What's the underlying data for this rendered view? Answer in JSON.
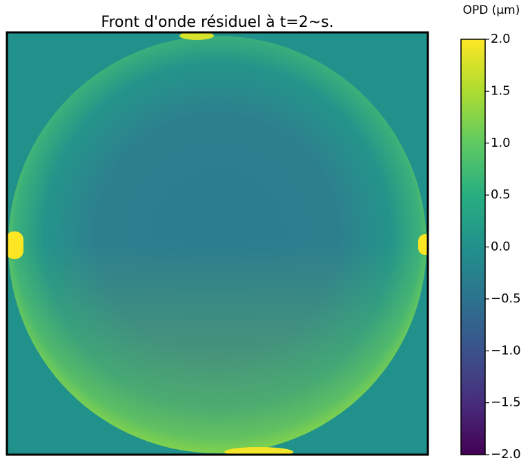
{
  "chart_data": {
    "type": "image",
    "title": "Front d'onde résiduel à t=2~s.",
    "colorbar_label": "OPD (μm)",
    "clim": [
      -2.0,
      2.0
    ],
    "colorbar_ticks": [
      {
        "value": 2.0,
        "label": "2.0"
      },
      {
        "value": 1.5,
        "label": "1.5"
      },
      {
        "value": 1.0,
        "label": "1.0"
      },
      {
        "value": 0.5,
        "label": "0.5"
      },
      {
        "value": 0.0,
        "label": "0.0"
      },
      {
        "value": -0.5,
        "label": "−0.5"
      },
      {
        "value": -1.0,
        "label": "−1.0"
      },
      {
        "value": -1.5,
        "label": "−1.5"
      },
      {
        "value": -2.0,
        "label": "−2.0"
      }
    ]
  }
}
